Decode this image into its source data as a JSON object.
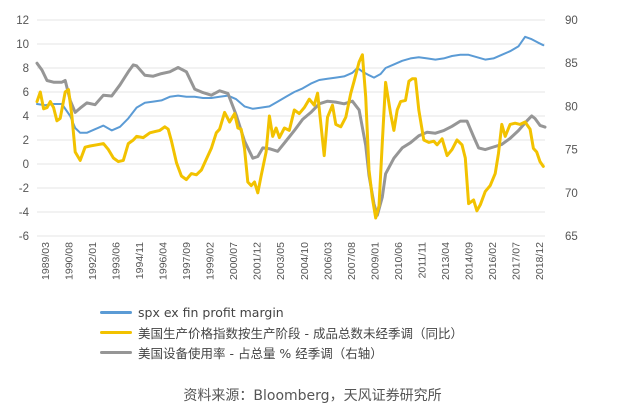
{
  "chart_data": {
    "type": "line",
    "title": "",
    "xlabel": "",
    "ylabel": "",
    "ylim": [
      -6,
      12
    ],
    "y2lim": [
      65,
      90
    ],
    "left_ticks": [
      "12",
      "10",
      "8",
      "6",
      "4",
      "2",
      "0",
      "-2",
      "-4",
      "-6"
    ],
    "right_ticks": [
      "90",
      "85",
      "80",
      "75",
      "70",
      "65"
    ],
    "x_ticks": [
      "1989/03",
      "1990/08",
      "1992/01",
      "1993/06",
      "1994/11",
      "1996/04",
      "1997/09",
      "1999/02",
      "2000/07",
      "2001/12",
      "2003/05",
      "2004/10",
      "2006/03",
      "2007/08",
      "2009/01",
      "2010/06",
      "2011/11",
      "2013/04",
      "2014/09",
      "2016/02",
      "2017/07",
      "2018/12"
    ],
    "x_range": [
      1989.0,
      2019.6
    ],
    "grid": "horizontal",
    "legend_position": "bottom",
    "series": [
      {
        "name": "spx ex fin profit margin",
        "axis": "left",
        "color": "#5b9bd5",
        "points": [
          [
            1989.0,
            5.0
          ],
          [
            1989.5,
            4.9
          ],
          [
            1990.0,
            5.0
          ],
          [
            1990.5,
            5.0
          ],
          [
            1991.0,
            4.0
          ],
          [
            1991.3,
            3.0
          ],
          [
            1991.6,
            2.6
          ],
          [
            1992.0,
            2.6
          ],
          [
            1992.5,
            2.9
          ],
          [
            1993.0,
            3.2
          ],
          [
            1993.5,
            2.8
          ],
          [
            1994.0,
            3.1
          ],
          [
            1994.5,
            3.8
          ],
          [
            1995.0,
            4.7
          ],
          [
            1995.5,
            5.1
          ],
          [
            1996.0,
            5.2
          ],
          [
            1996.5,
            5.3
          ],
          [
            1997.0,
            5.6
          ],
          [
            1997.5,
            5.7
          ],
          [
            1998.0,
            5.6
          ],
          [
            1998.5,
            5.6
          ],
          [
            1999.0,
            5.5
          ],
          [
            1999.5,
            5.5
          ],
          [
            2000.0,
            5.6
          ],
          [
            2000.5,
            5.7
          ],
          [
            2001.0,
            5.4
          ],
          [
            2001.5,
            4.8
          ],
          [
            2002.0,
            4.6
          ],
          [
            2002.5,
            4.7
          ],
          [
            2003.0,
            4.8
          ],
          [
            2003.5,
            5.2
          ],
          [
            2004.0,
            5.6
          ],
          [
            2004.5,
            6.0
          ],
          [
            2005.0,
            6.3
          ],
          [
            2005.5,
            6.7
          ],
          [
            2006.0,
            7.0
          ],
          [
            2006.5,
            7.1
          ],
          [
            2007.0,
            7.2
          ],
          [
            2007.5,
            7.3
          ],
          [
            2008.0,
            7.6
          ],
          [
            2008.3,
            8.0
          ],
          [
            2008.6,
            7.7
          ],
          [
            2009.0,
            7.4
          ],
          [
            2009.3,
            7.2
          ],
          [
            2009.7,
            7.5
          ],
          [
            2010.0,
            8.0
          ],
          [
            2010.5,
            8.3
          ],
          [
            2011.0,
            8.6
          ],
          [
            2011.5,
            8.8
          ],
          [
            2012.0,
            8.9
          ],
          [
            2012.5,
            8.8
          ],
          [
            2013.0,
            8.7
          ],
          [
            2013.5,
            8.8
          ],
          [
            2014.0,
            9.0
          ],
          [
            2014.5,
            9.1
          ],
          [
            2015.0,
            9.1
          ],
          [
            2015.5,
            8.9
          ],
          [
            2016.0,
            8.7
          ],
          [
            2016.5,
            8.8
          ],
          [
            2017.0,
            9.1
          ],
          [
            2017.5,
            9.4
          ],
          [
            2018.0,
            9.8
          ],
          [
            2018.4,
            10.6
          ],
          [
            2018.8,
            10.4
          ],
          [
            2019.2,
            10.1
          ],
          [
            2019.5,
            9.9
          ]
        ]
      },
      {
        "name": "美国生产价格指数按生产阶段 - 成品总数未经季调（同比）",
        "axis": "left",
        "color": "#f2c200",
        "points": [
          [
            1989.0,
            5.2
          ],
          [
            1989.2,
            6.0
          ],
          [
            1989.4,
            4.6
          ],
          [
            1989.6,
            4.7
          ],
          [
            1989.8,
            5.2
          ],
          [
            1990.0,
            4.7
          ],
          [
            1990.2,
            3.6
          ],
          [
            1990.4,
            3.8
          ],
          [
            1990.7,
            6.0
          ],
          [
            1990.9,
            6.2
          ],
          [
            1991.1,
            4.0
          ],
          [
            1991.3,
            1.0
          ],
          [
            1991.6,
            0.3
          ],
          [
            1991.9,
            1.4
          ],
          [
            1992.2,
            1.5
          ],
          [
            1992.6,
            1.6
          ],
          [
            1993.0,
            1.7
          ],
          [
            1993.3,
            1.2
          ],
          [
            1993.6,
            0.5
          ],
          [
            1993.9,
            0.2
          ],
          [
            1994.2,
            0.3
          ],
          [
            1994.5,
            1.7
          ],
          [
            1994.8,
            2.0
          ],
          [
            1995.0,
            2.3
          ],
          [
            1995.4,
            2.2
          ],
          [
            1995.8,
            2.6
          ],
          [
            1996.1,
            2.7
          ],
          [
            1996.4,
            2.8
          ],
          [
            1996.7,
            3.1
          ],
          [
            1996.9,
            2.9
          ],
          [
            1997.1,
            1.9
          ],
          [
            1997.4,
            0.1
          ],
          [
            1997.7,
            -1.0
          ],
          [
            1998.0,
            -1.3
          ],
          [
            1998.3,
            -0.8
          ],
          [
            1998.6,
            -0.9
          ],
          [
            1998.9,
            -0.5
          ],
          [
            1999.2,
            0.4
          ],
          [
            1999.5,
            1.3
          ],
          [
            1999.8,
            2.6
          ],
          [
            2000.0,
            2.9
          ],
          [
            2000.3,
            4.3
          ],
          [
            2000.6,
            3.5
          ],
          [
            2000.9,
            4.2
          ],
          [
            2001.1,
            3.0
          ],
          [
            2001.3,
            2.9
          ],
          [
            2001.5,
            1.3
          ],
          [
            2001.7,
            -1.5
          ],
          [
            2001.9,
            -1.8
          ],
          [
            2002.1,
            -1.5
          ],
          [
            2002.3,
            -2.4
          ],
          [
            2002.5,
            -1.0
          ],
          [
            2002.8,
            1.0
          ],
          [
            2003.0,
            4.0
          ],
          [
            2003.2,
            2.3
          ],
          [
            2003.4,
            3.0
          ],
          [
            2003.6,
            2.2
          ],
          [
            2003.9,
            3.0
          ],
          [
            2004.2,
            2.8
          ],
          [
            2004.5,
            4.5
          ],
          [
            2004.8,
            4.2
          ],
          [
            2005.1,
            4.7
          ],
          [
            2005.4,
            5.4
          ],
          [
            2005.7,
            4.9
          ],
          [
            2005.9,
            5.9
          ],
          [
            2006.1,
            3.3
          ],
          [
            2006.3,
            0.7
          ],
          [
            2006.5,
            3.9
          ],
          [
            2006.8,
            4.9
          ],
          [
            2007.0,
            3.3
          ],
          [
            2007.3,
            3.1
          ],
          [
            2007.6,
            3.9
          ],
          [
            2007.9,
            5.9
          ],
          [
            2008.1,
            6.9
          ],
          [
            2008.4,
            8.5
          ],
          [
            2008.6,
            9.1
          ],
          [
            2008.8,
            5.6
          ],
          [
            2009.0,
            -0.5
          ],
          [
            2009.2,
            -2.8
          ],
          [
            2009.4,
            -4.5
          ],
          [
            2009.6,
            -3.5
          ],
          [
            2009.8,
            1.8
          ],
          [
            2010.0,
            6.8
          ],
          [
            2010.3,
            4.2
          ],
          [
            2010.5,
            2.8
          ],
          [
            2010.7,
            4.5
          ],
          [
            2010.9,
            5.2
          ],
          [
            2011.2,
            5.3
          ],
          [
            2011.4,
            6.9
          ],
          [
            2011.6,
            7.1
          ],
          [
            2011.8,
            7.1
          ],
          [
            2012.0,
            4.5
          ],
          [
            2012.3,
            2.0
          ],
          [
            2012.6,
            1.8
          ],
          [
            2012.9,
            1.9
          ],
          [
            2013.1,
            1.6
          ],
          [
            2013.4,
            2.1
          ],
          [
            2013.7,
            0.7
          ],
          [
            2014.0,
            1.2
          ],
          [
            2014.3,
            2.0
          ],
          [
            2014.6,
            1.6
          ],
          [
            2014.8,
            0.5
          ],
          [
            2015.0,
            -3.3
          ],
          [
            2015.3,
            -3.0
          ],
          [
            2015.5,
            -3.9
          ],
          [
            2015.7,
            -3.4
          ],
          [
            2016.0,
            -2.3
          ],
          [
            2016.3,
            -1.8
          ],
          [
            2016.6,
            -0.8
          ],
          [
            2016.8,
            0.9
          ],
          [
            2017.0,
            3.3
          ],
          [
            2017.2,
            2.3
          ],
          [
            2017.5,
            3.3
          ],
          [
            2017.8,
            3.4
          ],
          [
            2018.1,
            3.3
          ],
          [
            2018.4,
            3.5
          ],
          [
            2018.7,
            2.9
          ],
          [
            2018.9,
            1.3
          ],
          [
            2019.1,
            1.0
          ],
          [
            2019.3,
            0.2
          ],
          [
            2019.5,
            -0.2
          ]
        ]
      },
      {
        "name": "美国设备使用率 - 占总量 % 经季调（右轴）",
        "axis": "right",
        "color": "#969696",
        "points": [
          [
            1989.0,
            85.0
          ],
          [
            1989.3,
            84.2
          ],
          [
            1989.6,
            83.0
          ],
          [
            1990.0,
            82.8
          ],
          [
            1990.5,
            82.8
          ],
          [
            1990.7,
            83.0
          ],
          [
            1991.0,
            80.7
          ],
          [
            1991.3,
            79.3
          ],
          [
            1991.6,
            79.8
          ],
          [
            1992.0,
            80.4
          ],
          [
            1992.5,
            80.2
          ],
          [
            1993.0,
            81.3
          ],
          [
            1993.5,
            81.2
          ],
          [
            1994.0,
            82.5
          ],
          [
            1994.5,
            84.0
          ],
          [
            1994.8,
            84.8
          ],
          [
            1995.0,
            84.7
          ],
          [
            1995.5,
            83.6
          ],
          [
            1996.0,
            83.5
          ],
          [
            1996.5,
            83.8
          ],
          [
            1997.0,
            84.0
          ],
          [
            1997.5,
            84.5
          ],
          [
            1998.0,
            84.0
          ],
          [
            1998.5,
            82.0
          ],
          [
            1999.0,
            81.6
          ],
          [
            1999.5,
            81.3
          ],
          [
            2000.0,
            81.8
          ],
          [
            2000.5,
            81.5
          ],
          [
            2001.0,
            79.0
          ],
          [
            2001.5,
            76.0
          ],
          [
            2002.0,
            74.0
          ],
          [
            2002.3,
            74.2
          ],
          [
            2002.6,
            75.2
          ],
          [
            2003.0,
            75.1
          ],
          [
            2003.5,
            74.8
          ],
          [
            2004.0,
            76.0
          ],
          [
            2004.5,
            77.2
          ],
          [
            2005.0,
            78.5
          ],
          [
            2005.5,
            79.3
          ],
          [
            2006.0,
            80.3
          ],
          [
            2006.5,
            80.6
          ],
          [
            2007.0,
            80.5
          ],
          [
            2007.5,
            80.3
          ],
          [
            2008.0,
            80.6
          ],
          [
            2008.4,
            79.6
          ],
          [
            2008.8,
            75.5
          ],
          [
            2009.0,
            72.0
          ],
          [
            2009.3,
            68.7
          ],
          [
            2009.5,
            67.4
          ],
          [
            2009.8,
            69.5
          ],
          [
            2010.0,
            72.2
          ],
          [
            2010.5,
            74.0
          ],
          [
            2011.0,
            75.2
          ],
          [
            2011.5,
            75.8
          ],
          [
            2012.0,
            76.6
          ],
          [
            2012.5,
            77.0
          ],
          [
            2013.0,
            76.9
          ],
          [
            2013.5,
            77.2
          ],
          [
            2014.0,
            77.7
          ],
          [
            2014.5,
            78.3
          ],
          [
            2014.9,
            78.3
          ],
          [
            2015.3,
            76.5
          ],
          [
            2015.6,
            75.2
          ],
          [
            2016.0,
            75.0
          ],
          [
            2016.5,
            75.3
          ],
          [
            2017.0,
            75.6
          ],
          [
            2017.5,
            76.3
          ],
          [
            2018.0,
            77.2
          ],
          [
            2018.5,
            78.3
          ],
          [
            2018.8,
            78.9
          ],
          [
            2019.0,
            78.6
          ],
          [
            2019.3,
            77.8
          ],
          [
            2019.6,
            77.6
          ]
        ]
      }
    ]
  },
  "legend": {
    "items": [
      {
        "label": "spx ex fin profit margin"
      },
      {
        "label": "美国生产价格指数按生产阶段 - 成品总数未经季调（同比）"
      },
      {
        "label": "美国设备使用率 - 占总量 % 经季调（右轴）"
      }
    ]
  },
  "source": {
    "text": "资料来源：Bloomberg，天风证券研究所"
  }
}
